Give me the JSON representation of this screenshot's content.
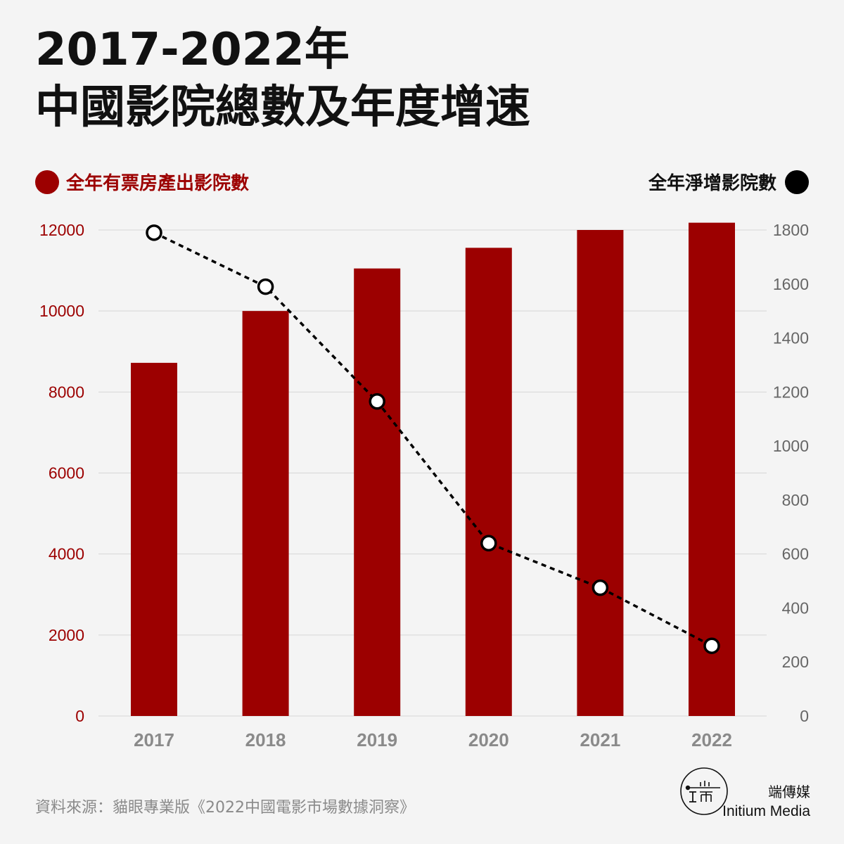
{
  "title": {
    "line1": "2017-2022年",
    "line2": "中國影院總數及年度增速"
  },
  "legend": {
    "left": {
      "label": "全年有票房產出影院數",
      "color": "#9c0000"
    },
    "right": {
      "label": "全年淨增影院數",
      "color": "#000000"
    }
  },
  "chart_data": {
    "type": "bar",
    "categories": [
      "2017",
      "2018",
      "2019",
      "2020",
      "2021",
      "2022"
    ],
    "series": [
      {
        "name": "全年有票房產出影院數",
        "type": "bar",
        "axis": "left",
        "color": "#9c0000",
        "values": [
          8720,
          10000,
          11050,
          11560,
          12000,
          12180
        ]
      },
      {
        "name": "全年淨增影院數",
        "type": "line",
        "axis": "right",
        "style": "dashed",
        "color": "#000000",
        "values": [
          1790,
          1590,
          1165,
          640,
          475,
          260
        ]
      }
    ],
    "left_axis": {
      "ticks": [
        "0",
        "2000",
        "4000",
        "6000",
        "8000",
        "10000",
        "12000"
      ],
      "ylim": [
        0,
        12000
      ],
      "color": "#9c0000"
    },
    "right_axis": {
      "ticks": [
        "0",
        "200",
        "400",
        "600",
        "800",
        "1000",
        "1200",
        "1400",
        "1600",
        "1800"
      ],
      "ylim": [
        0,
        1800
      ],
      "color": "#666666"
    },
    "grid": true
  },
  "source": "資料來源：貓眼專業版《2022中國電影市場數據洞察》",
  "brand": {
    "logo_icon": "initium-logo-icon",
    "zh": "端傳媒",
    "en": "Initium Media"
  }
}
